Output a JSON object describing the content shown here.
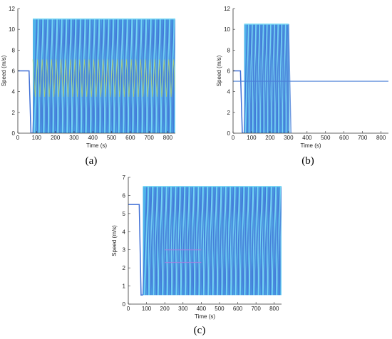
{
  "colors": {
    "main": "#2fa6e6",
    "dark": "#3f6fd6",
    "light": "#7fdcf5",
    "accent_yellow": "#c8d94a",
    "accent_purple": "#b07ee0",
    "line": "#4a7fd8",
    "axis": "#333333"
  },
  "chart_data": [
    {
      "id": "a",
      "type": "line",
      "panel_label": "(a)",
      "xlabel": "Time (s)",
      "ylabel": "Speed (m/s)",
      "xlim": [
        0,
        840
      ],
      "ylim": [
        0,
        12
      ],
      "xticks": [
        0,
        100,
        200,
        300,
        400,
        500,
        600,
        700,
        800
      ],
      "yticks": [
        0,
        2,
        4,
        6,
        8,
        10,
        12
      ],
      "grid": false,
      "series": [
        {
          "description": "Many overlapping vehicle speed traces oscillating between 0 and ~11 m/s after t≈80 s",
          "initial_speed": 6,
          "initial_end_time": 45,
          "drop_time": 75,
          "oscillation_start": 80,
          "oscillation_end": 840,
          "min": 0,
          "max": 11,
          "period": 25
        }
      ]
    },
    {
      "id": "b",
      "type": "line",
      "panel_label": "(b)",
      "xlabel": "Time (s)",
      "ylabel": "Speed (m/s)",
      "xlim": [
        0,
        840
      ],
      "ylim": [
        0,
        12
      ],
      "xticks": [
        0,
        100,
        200,
        300,
        400,
        500,
        600,
        700,
        800
      ],
      "yticks": [
        0,
        2,
        4,
        6,
        8,
        10,
        12
      ],
      "grid": false,
      "series": [
        {
          "description": "Oscillation between ~0 and ~10.5 m/s from 50 s to ~300 s, then steady at 5 m/s",
          "initial_speed": 6,
          "steady_speed": 5,
          "oscillation_start": 60,
          "oscillation_end": 300,
          "min": 0,
          "max": 10.5,
          "period": 20
        }
      ]
    },
    {
      "id": "c",
      "type": "line",
      "panel_label": "(c)",
      "xlabel": "Time (s)",
      "ylabel": "Speed (m/s)",
      "xlim": [
        0,
        840
      ],
      "ylim": [
        0,
        7
      ],
      "xticks": [
        0,
        100,
        200,
        300,
        400,
        500,
        600,
        700,
        800
      ],
      "yticks": [
        0,
        1,
        2,
        3,
        4,
        5,
        6,
        7
      ],
      "grid": false,
      "series": [
        {
          "description": "Oscillation between ~0.5 and ~6.5 m/s from ~80 s to 840 s",
          "initial_speed": 5.5,
          "oscillation_start": 80,
          "oscillation_end": 840,
          "min": 0.5,
          "max": 6.5,
          "period": 25
        }
      ]
    }
  ]
}
